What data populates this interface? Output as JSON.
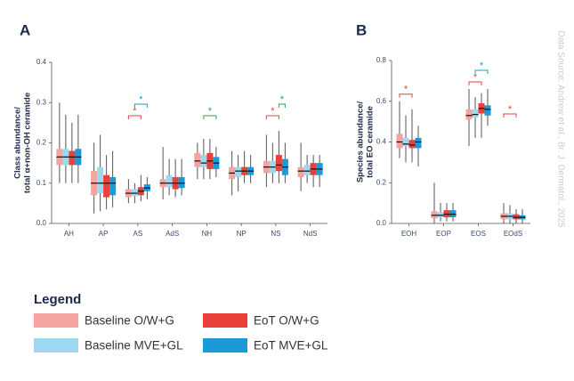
{
  "source": "Data Source: Andrew et al., Br. J. Dermatol., 2025",
  "legend_title": "Legend",
  "chart_data": [
    {
      "type": "box",
      "panel": "A",
      "ylabel": [
        "Class abundance/",
        "total α+non-OH ceramide"
      ],
      "categories": [
        "AH",
        "AP",
        "AS",
        "AdS",
        "NH",
        "NP",
        "NS",
        "NdS"
      ],
      "ylim": [
        0,
        0.4
      ],
      "yticks": [
        {
          "value": 0,
          "label": "0.0"
        },
        {
          "value": 0.1,
          "label": "0.1"
        },
        {
          "value": 0.2,
          "label": "0.2"
        },
        {
          "value": 0.3,
          "label": "0.3"
        },
        {
          "value": 0.4,
          "label": "0.4"
        }
      ],
      "series": [
        {
          "name": "Baseline O/W+G",
          "color": "#f4a3a0",
          "values": [
            {
              "min": 0.1,
              "q1": 0.145,
              "median": 0.165,
              "q3": 0.185,
              "max": 0.3
            },
            {
              "min": 0.025,
              "q1": 0.07,
              "median": 0.1,
              "q3": 0.13,
              "max": 0.2
            },
            {
              "min": 0.05,
              "q1": 0.065,
              "median": 0.075,
              "q3": 0.085,
              "max": 0.11
            },
            {
              "min": 0.06,
              "q1": 0.09,
              "median": 0.1,
              "q3": 0.11,
              "max": 0.19
            },
            {
              "min": 0.11,
              "q1": 0.14,
              "median": 0.155,
              "q3": 0.175,
              "max": 0.2
            },
            {
              "min": 0.07,
              "q1": 0.11,
              "median": 0.125,
              "q3": 0.14,
              "max": 0.18
            },
            {
              "min": 0.09,
              "q1": 0.125,
              "median": 0.14,
              "q3": 0.155,
              "max": 0.22
            },
            {
              "min": 0.08,
              "q1": 0.115,
              "median": 0.13,
              "q3": 0.14,
              "max": 0.2
            }
          ]
        },
        {
          "name": "Baseline MVE+GL",
          "color": "#9dd8f0",
          "values": [
            {
              "min": 0.1,
              "q1": 0.145,
              "median": 0.165,
              "q3": 0.185,
              "max": 0.27
            },
            {
              "min": 0.03,
              "q1": 0.075,
              "median": 0.1,
              "q3": 0.14,
              "max": 0.22
            },
            {
              "min": 0.05,
              "q1": 0.068,
              "median": 0.075,
              "q3": 0.085,
              "max": 0.1
            },
            {
              "min": 0.07,
              "q1": 0.09,
              "median": 0.1,
              "q3": 0.12,
              "max": 0.16
            },
            {
              "min": 0.11,
              "q1": 0.14,
              "median": 0.15,
              "q3": 0.17,
              "max": 0.21
            },
            {
              "min": 0.08,
              "q1": 0.115,
              "median": 0.13,
              "q3": 0.14,
              "max": 0.17
            },
            {
              "min": 0.1,
              "q1": 0.125,
              "median": 0.14,
              "q3": 0.155,
              "max": 0.2
            },
            {
              "min": 0.1,
              "q1": 0.12,
              "median": 0.13,
              "q3": 0.145,
              "max": 0.17
            }
          ]
        },
        {
          "name": "EoT O/W+G",
          "color": "#e8413c",
          "values": [
            {
              "min": 0.1,
              "q1": 0.145,
              "median": 0.165,
              "q3": 0.18,
              "max": 0.25
            },
            {
              "min": 0.035,
              "q1": 0.065,
              "median": 0.1,
              "q3": 0.12,
              "max": 0.17
            },
            {
              "min": 0.055,
              "q1": 0.07,
              "median": 0.08,
              "q3": 0.09,
              "max": 0.12
            },
            {
              "min": 0.065,
              "q1": 0.085,
              "median": 0.1,
              "q3": 0.115,
              "max": 0.16
            },
            {
              "min": 0.11,
              "q1": 0.135,
              "median": 0.155,
              "q3": 0.175,
              "max": 0.21
            },
            {
              "min": 0.1,
              "q1": 0.12,
              "median": 0.13,
              "q3": 0.14,
              "max": 0.18
            },
            {
              "min": 0.1,
              "q1": 0.13,
              "median": 0.145,
              "q3": 0.17,
              "max": 0.23
            },
            {
              "min": 0.09,
              "q1": 0.12,
              "median": 0.135,
              "q3": 0.15,
              "max": 0.17
            }
          ]
        },
        {
          "name": "EoT MVE+GL",
          "color": "#1a9ad6",
          "values": [
            {
              "min": 0.1,
              "q1": 0.145,
              "median": 0.165,
              "q3": 0.185,
              "max": 0.27
            },
            {
              "min": 0.04,
              "q1": 0.07,
              "median": 0.1,
              "q3": 0.115,
              "max": 0.18
            },
            {
              "min": 0.06,
              "q1": 0.08,
              "median": 0.088,
              "q3": 0.097,
              "max": 0.115
            },
            {
              "min": 0.07,
              "q1": 0.088,
              "median": 0.1,
              "q3": 0.115,
              "max": 0.16
            },
            {
              "min": 0.115,
              "q1": 0.135,
              "median": 0.15,
              "q3": 0.165,
              "max": 0.19
            },
            {
              "min": 0.1,
              "q1": 0.12,
              "median": 0.13,
              "q3": 0.14,
              "max": 0.17
            },
            {
              "min": 0.1,
              "q1": 0.12,
              "median": 0.14,
              "q3": 0.16,
              "max": 0.2
            },
            {
              "min": 0.09,
              "q1": 0.12,
              "median": 0.135,
              "q3": 0.15,
              "max": 0.17
            }
          ]
        }
      ],
      "annotations": [
        {
          "text": "*",
          "category": 2,
          "compare": [
            0,
            2
          ],
          "color": "#e8413c"
        },
        {
          "text": "*",
          "category": 2,
          "compare": [
            1,
            3
          ],
          "color": "#1a9ad6"
        },
        {
          "text": "*",
          "category": 4,
          "compare": [
            1,
            3
          ],
          "color": "#2aa34a"
        },
        {
          "text": "*",
          "category": 6,
          "compare": [
            0,
            2
          ],
          "color": "#e8413c"
        },
        {
          "text": "*",
          "category": 6,
          "compare": [
            2,
            3
          ],
          "color": "#2aa34a"
        }
      ]
    },
    {
      "type": "box",
      "panel": "B",
      "ylabel": [
        "Species abundance/",
        "total EO ceramide"
      ],
      "categories": [
        "EOH",
        "EOP",
        "EOS",
        "EOdS"
      ],
      "ylim": [
        0,
        0.8
      ],
      "yticks": [
        {
          "value": 0,
          "label": "0.0"
        },
        {
          "value": 0.2,
          "label": "0.2"
        },
        {
          "value": 0.4,
          "label": "0.4"
        },
        {
          "value": 0.6,
          "label": "0.6"
        },
        {
          "value": 0.8,
          "label": "0.8"
        }
      ],
      "series": [
        {
          "color": "#f4a3a0",
          "values": [
            {
              "min": 0.32,
              "q1": 0.37,
              "median": 0.4,
              "q3": 0.44,
              "max": 0.6
            },
            {
              "min": 0,
              "q1": 0.025,
              "median": 0.04,
              "q3": 0.06,
              "max": 0.2
            },
            {
              "min": 0.38,
              "q1": 0.51,
              "median": 0.53,
              "q3": 0.56,
              "max": 0.66
            },
            {
              "min": 0,
              "q1": 0.02,
              "median": 0.035,
              "q3": 0.05,
              "max": 0.1
            }
          ]
        },
        {
          "color": "#9dd8f0",
          "values": [
            {
              "min": 0.3,
              "q1": 0.38,
              "median": 0.39,
              "q3": 0.42,
              "max": 0.53
            },
            {
              "min": 0.01,
              "q1": 0.03,
              "median": 0.04,
              "q3": 0.055,
              "max": 0.1
            },
            {
              "min": 0.42,
              "q1": 0.52,
              "median": 0.535,
              "q3": 0.56,
              "max": 0.62
            },
            {
              "min": 0,
              "q1": 0.02,
              "median": 0.035,
              "q3": 0.05,
              "max": 0.09
            }
          ]
        },
        {
          "color": "#e8413c",
          "values": [
            {
              "min": 0.3,
              "q1": 0.37,
              "median": 0.385,
              "q3": 0.41,
              "max": 0.56
            },
            {
              "min": 0.01,
              "q1": 0.03,
              "median": 0.045,
              "q3": 0.065,
              "max": 0.1
            },
            {
              "min": 0.42,
              "q1": 0.54,
              "median": 0.565,
              "q3": 0.59,
              "max": 0.64
            },
            {
              "min": 0,
              "q1": 0.02,
              "median": 0.03,
              "q3": 0.045,
              "max": 0.07
            }
          ]
        },
        {
          "color": "#1a9ad6",
          "values": [
            {
              "min": 0.28,
              "q1": 0.37,
              "median": 0.4,
              "q3": 0.42,
              "max": 0.48
            },
            {
              "min": 0.01,
              "q1": 0.03,
              "median": 0.045,
              "q3": 0.065,
              "max": 0.1
            },
            {
              "min": 0.48,
              "q1": 0.53,
              "median": 0.56,
              "q3": 0.58,
              "max": 0.66
            },
            {
              "min": 0,
              "q1": 0.02,
              "median": 0.03,
              "q3": 0.04,
              "max": 0.07
            }
          ]
        }
      ],
      "annotations": [
        {
          "text": "*",
          "category": 0,
          "compare": [
            0,
            2
          ],
          "color": "#e8413c"
        },
        {
          "text": "*",
          "category": 2,
          "compare": [
            0,
            2
          ],
          "color": "#e8413c"
        },
        {
          "text": "*",
          "category": 2,
          "compare": [
            1,
            3
          ],
          "color": "#1a9ad6"
        },
        {
          "text": "*",
          "category": 3,
          "compare": [
            0,
            2
          ],
          "color": "#e8413c"
        }
      ]
    }
  ]
}
